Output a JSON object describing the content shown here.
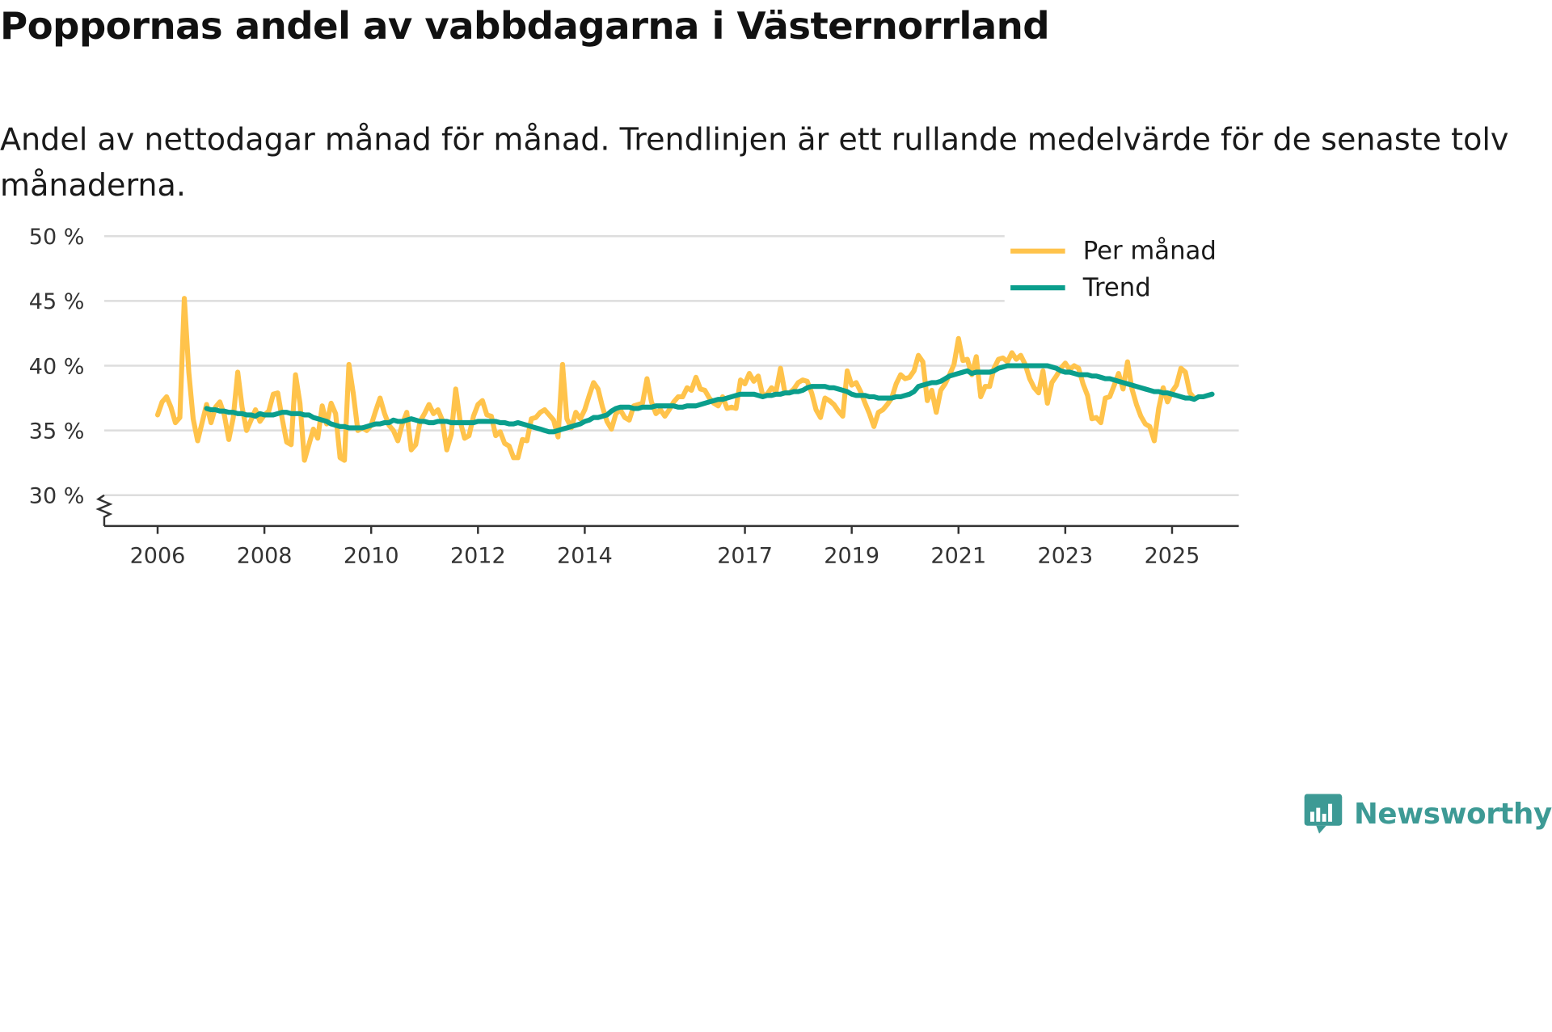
{
  "header": {
    "title": "Poppornas andel av vabbdagarna i Västernorrland",
    "subtitle": "Andel av nettodagar månad för månad. Trendlinjen är ett rullande medelvärde för de senaste tolv månaderna."
  },
  "brand": {
    "name": "Newsworthy"
  },
  "legend": {
    "monthly_label": "Per månad",
    "trend_label": "Trend"
  },
  "colors": {
    "monthly": "#ffc34b",
    "trend": "#0a9e8c",
    "grid": "#dddddd",
    "axis": "#333333",
    "brand": "#3d9a95"
  },
  "chart_data": {
    "type": "line",
    "title": "Poppornas andel av vabbdagarna i Västernorrland",
    "xlabel": "",
    "ylabel": "",
    "ylim": [
      30,
      50
    ],
    "xlim": [
      2005.0,
      2026.25
    ],
    "grid": true,
    "legend_position": "top-right",
    "y_ticks": [
      {
        "value": 30,
        "label": "30 %"
      },
      {
        "value": 35,
        "label": "35 %"
      },
      {
        "value": 40,
        "label": "40 %"
      },
      {
        "value": 45,
        "label": "45 %"
      },
      {
        "value": 50,
        "label": "50 %"
      }
    ],
    "x_ticks": [
      {
        "value": 2006,
        "label": "2006"
      },
      {
        "value": 2008,
        "label": "2008"
      },
      {
        "value": 2010,
        "label": "2010"
      },
      {
        "value": 2012,
        "label": "2012"
      },
      {
        "value": 2014,
        "label": "2014"
      },
      {
        "value": 2017,
        "label": "2017"
      },
      {
        "value": 2019,
        "label": "2019"
      },
      {
        "value": 2021,
        "label": "2021"
      },
      {
        "value": 2023,
        "label": "2023"
      },
      {
        "value": 2025,
        "label": "2025"
      }
    ],
    "series": [
      {
        "name": "Per månad",
        "start_year": 2006.0,
        "step": 0.08333,
        "values": [
          36.2,
          37.2,
          37.6,
          36.8,
          35.6,
          36.0,
          45.2,
          39.5,
          35.9,
          34.2,
          35.6,
          37.0,
          35.6,
          36.8,
          37.2,
          36.2,
          34.3,
          36.0,
          39.5,
          36.8,
          35.0,
          35.8,
          36.6,
          35.7,
          36.2,
          36.5,
          37.8,
          37.9,
          35.9,
          34.1,
          33.9,
          39.3,
          37.1,
          32.7,
          33.9,
          35.1,
          34.4,
          36.9,
          35.5,
          37.1,
          36.3,
          32.9,
          32.7,
          40.1,
          37.8,
          35.0,
          35.2,
          35.0,
          35.4,
          36.5,
          37.5,
          36.3,
          35.4,
          35.0,
          34.2,
          35.5,
          36.4,
          33.5,
          33.9,
          35.7,
          36.3,
          37.0,
          36.3,
          36.6,
          35.8,
          33.5,
          34.7,
          38.2,
          35.7,
          34.4,
          34.6,
          36.1,
          37.0,
          37.3,
          36.2,
          36.1,
          34.6,
          34.9,
          34.0,
          33.8,
          32.9,
          32.9,
          34.3,
          34.2,
          35.9,
          36.0,
          36.4,
          36.6,
          36.2,
          35.8,
          34.5,
          40.1,
          35.9,
          35.2,
          36.4,
          35.9,
          36.6,
          37.7,
          38.7,
          38.2,
          36.8,
          35.7,
          35.1,
          36.3,
          36.6,
          36.0,
          35.8,
          36.9,
          37.0,
          37.1,
          39.0,
          37.2,
          36.3,
          36.6,
          36.1,
          36.6,
          37.2,
          37.6,
          37.6,
          38.3,
          38.1,
          39.1,
          38.2,
          38.1,
          37.5,
          37.1,
          36.9,
          37.6,
          36.7,
          36.8,
          36.7,
          38.9,
          38.6,
          39.4,
          38.8,
          39.2,
          37.7,
          37.8,
          38.3,
          38.0,
          39.8,
          37.9,
          37.9,
          38.2,
          38.7,
          38.9,
          38.8,
          37.9,
          36.6,
          36.0,
          37.5,
          37.3,
          37.0,
          36.5,
          36.1,
          39.6,
          38.5,
          38.7,
          38.0,
          37.1,
          36.3,
          35.3,
          36.4,
          36.6,
          37.0,
          37.5,
          38.6,
          39.3,
          39.0,
          39.1,
          39.6,
          40.8,
          40.3,
          37.3,
          38.1,
          36.4,
          38.1,
          38.6,
          39.3,
          40.1,
          42.1,
          40.4,
          40.5,
          39.3,
          40.7,
          37.6,
          38.4,
          38.4,
          39.8,
          40.5,
          40.6,
          40.3,
          41.0,
          40.5,
          40.8,
          40.1,
          39.0,
          38.3,
          37.9,
          39.6,
          37.1,
          38.7,
          39.2,
          39.8,
          40.2,
          39.7,
          40.0,
          39.8,
          38.6,
          37.7,
          35.9,
          36.0,
          35.6,
          37.5,
          37.6,
          38.5,
          39.4,
          38.2,
          40.3,
          38.2,
          37.0,
          36.1,
          35.5,
          35.3,
          34.2,
          36.7,
          38.3,
          37.2,
          38.0,
          38.5,
          39.8,
          39.5,
          37.9,
          37.5
        ]
      },
      {
        "name": "Trend",
        "start_year": 2006.9167,
        "step": 0.08333,
        "values": [
          36.7,
          36.6,
          36.6,
          36.5,
          36.5,
          36.4,
          36.4,
          36.3,
          36.3,
          36.2,
          36.2,
          36.1,
          36.3,
          36.2,
          36.2,
          36.2,
          36.3,
          36.4,
          36.4,
          36.3,
          36.3,
          36.3,
          36.2,
          36.2,
          36.0,
          35.9,
          35.8,
          35.7,
          35.5,
          35.4,
          35.3,
          35.3,
          35.2,
          35.2,
          35.2,
          35.2,
          35.3,
          35.4,
          35.5,
          35.5,
          35.6,
          35.6,
          35.8,
          35.7,
          35.7,
          35.8,
          35.9,
          35.8,
          35.7,
          35.7,
          35.6,
          35.6,
          35.7,
          35.7,
          35.7,
          35.6,
          35.6,
          35.6,
          35.6,
          35.6,
          35.6,
          35.7,
          35.7,
          35.7,
          35.7,
          35.7,
          35.6,
          35.6,
          35.5,
          35.5,
          35.6,
          35.5,
          35.4,
          35.3,
          35.2,
          35.1,
          35.0,
          34.9,
          34.9,
          35.0,
          35.1,
          35.2,
          35.3,
          35.4,
          35.5,
          35.7,
          35.8,
          36.0,
          36.0,
          36.1,
          36.2,
          36.5,
          36.7,
          36.8,
          36.8,
          36.8,
          36.7,
          36.7,
          36.8,
          36.8,
          36.8,
          36.9,
          36.9,
          36.9,
          36.9,
          36.9,
          36.8,
          36.8,
          36.9,
          36.9,
          36.9,
          37.0,
          37.1,
          37.2,
          37.3,
          37.4,
          37.4,
          37.5,
          37.6,
          37.7,
          37.8,
          37.8,
          37.8,
          37.8,
          37.7,
          37.6,
          37.7,
          37.7,
          37.8,
          37.8,
          37.9,
          37.9,
          38.0,
          38.0,
          38.1,
          38.3,
          38.4,
          38.4,
          38.4,
          38.4,
          38.3,
          38.3,
          38.2,
          38.1,
          38.0,
          37.8,
          37.7,
          37.7,
          37.7,
          37.6,
          37.6,
          37.5,
          37.5,
          37.5,
          37.5,
          37.6,
          37.6,
          37.7,
          37.8,
          38.0,
          38.4,
          38.5,
          38.6,
          38.7,
          38.7,
          38.8,
          39.0,
          39.2,
          39.3,
          39.4,
          39.5,
          39.6,
          39.4,
          39.5,
          39.5,
          39.5,
          39.5,
          39.6,
          39.8,
          39.9,
          40.0,
          40.0,
          40.0,
          40.0,
          40.0,
          40.0,
          40.0,
          40.0,
          40.0,
          40.0,
          39.9,
          39.8,
          39.6,
          39.5,
          39.5,
          39.4,
          39.3,
          39.3,
          39.3,
          39.2,
          39.2,
          39.1,
          39.0,
          39.0,
          38.9,
          38.8,
          38.7,
          38.6,
          38.5,
          38.4,
          38.3,
          38.2,
          38.1,
          38.0,
          38.0,
          37.9,
          37.9,
          37.8,
          37.7,
          37.6,
          37.5,
          37.5,
          37.4,
          37.6,
          37.6,
          37.7,
          37.8
        ]
      }
    ]
  }
}
